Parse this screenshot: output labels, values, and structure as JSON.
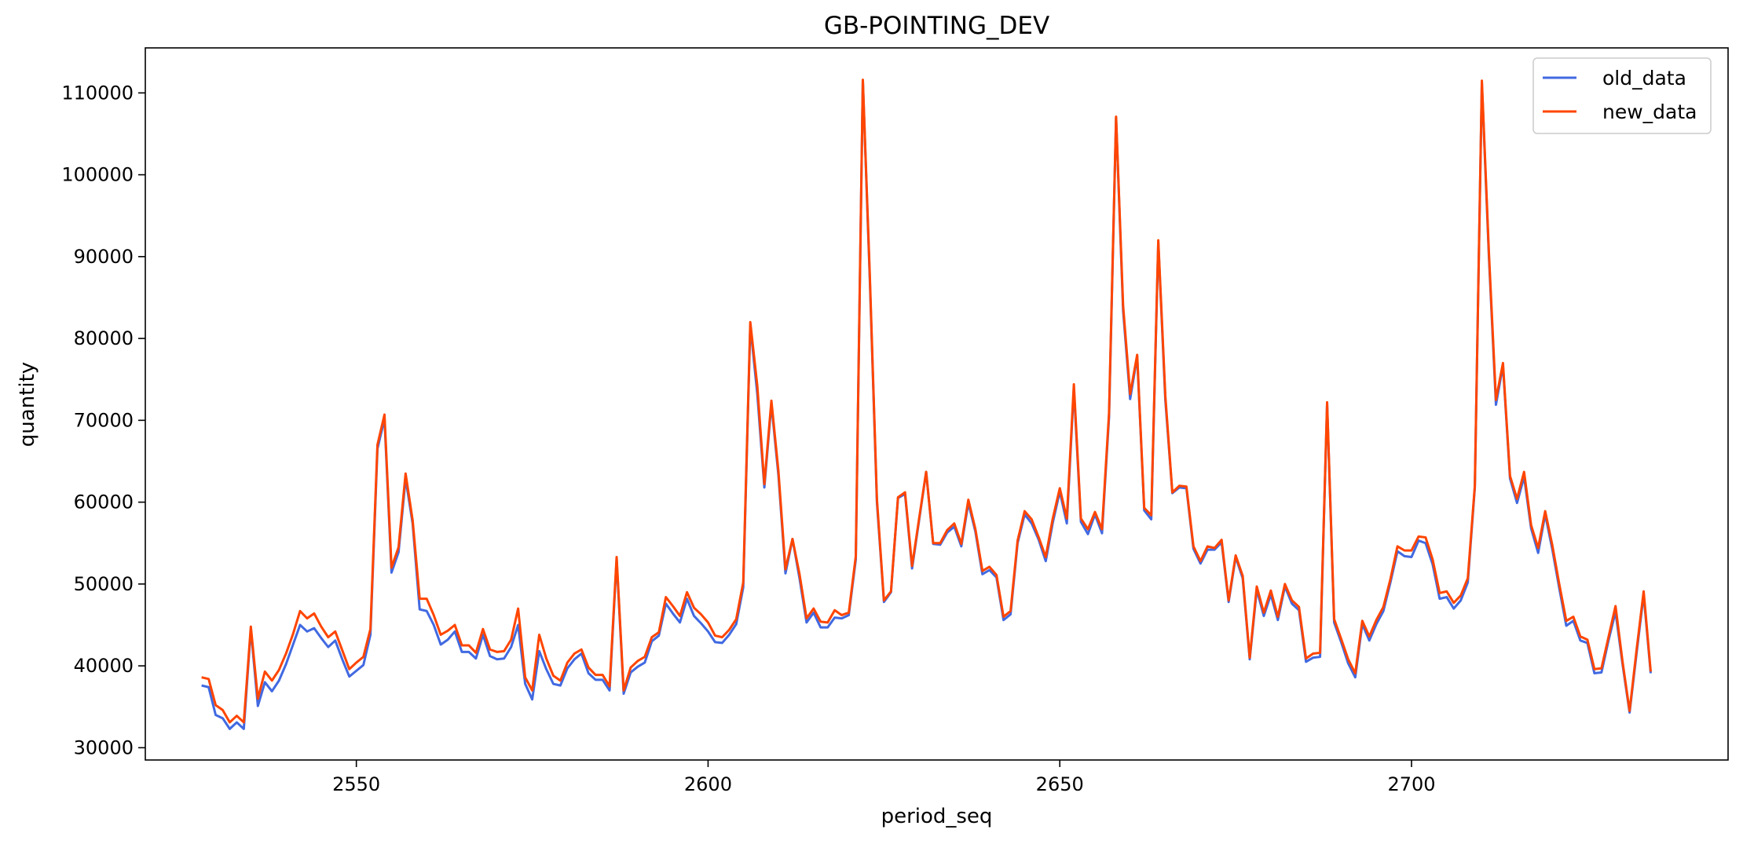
{
  "chart_data": {
    "type": "line",
    "title": "GB-POINTING_DEV",
    "xlabel": "period_seq",
    "ylabel": "quantity",
    "xlim": [
      2520,
      2745
    ],
    "ylim": [
      28500,
      115500
    ],
    "xticks": [
      2550,
      2600,
      2650,
      2700
    ],
    "yticks": [
      30000,
      40000,
      50000,
      60000,
      70000,
      80000,
      90000,
      100000,
      110000
    ],
    "grid": false,
    "legend_position": "top-right",
    "x_start": 2528,
    "series": [
      {
        "name": "old_data",
        "color": "#4169e1",
        "values": [
          37600,
          37400,
          34000,
          33600,
          32300,
          33100,
          32300,
          44500,
          35100,
          38000,
          36900,
          38200,
          40200,
          42600,
          45000,
          44200,
          44600,
          43400,
          42300,
          43100,
          40800,
          38700,
          39400,
          40100,
          43800,
          66500,
          70200,
          51400,
          53900,
          62900,
          57400,
          46900,
          46700,
          45000,
          42600,
          43200,
          44200,
          41700,
          41700,
          40900,
          43800,
          41200,
          40800,
          40900,
          42300,
          45000,
          37800,
          35900,
          41800,
          39600,
          37800,
          37600,
          39700,
          40800,
          41500,
          39100,
          38300,
          38300,
          37000,
          53000,
          36600,
          39200,
          39900,
          40400,
          43000,
          43700,
          47600,
          46400,
          45300,
          48200,
          46100,
          45200,
          44200,
          42900,
          42800,
          43800,
          45100,
          49600,
          81600,
          73200,
          61800,
          72000,
          63300,
          51300,
          55500,
          50700,
          45300,
          46500,
          44700,
          44700,
          45900,
          45800,
          46200,
          53000,
          111500,
          87000,
          60000,
          47800,
          49000,
          60500,
          61000,
          51900,
          57800,
          63700,
          54900,
          54800,
          56300,
          57000,
          54600,
          59900,
          56400,
          51200,
          51700,
          50800,
          45600,
          46300,
          55000,
          58500,
          57400,
          55400,
          52800,
          57500,
          61300,
          57400,
          73900,
          57600,
          56100,
          58500,
          56200,
          70400,
          107000,
          83400,
          72600,
          77800,
          59000,
          57900,
          91700,
          72500,
          61100,
          61800,
          61700,
          54300,
          52500,
          54200,
          54200,
          55100,
          47800,
          53300,
          50700,
          40800,
          49300,
          46100,
          48700,
          45600,
          49700,
          47600,
          46800,
          40500,
          41000,
          41100,
          72000,
          45300,
          42900,
          40300,
          38600,
          45100,
          43100,
          45100,
          46700,
          50200,
          54000,
          53400,
          53300,
          55300,
          55000,
          52400,
          48200,
          48400,
          47000,
          48000,
          50200,
          61800,
          111200,
          90000,
          71900,
          76700,
          62900,
          59900,
          63100,
          56800,
          53800,
          58500,
          54300,
          49500,
          44900,
          45500,
          43100,
          42800,
          39100,
          39200,
          43100,
          46600,
          40200,
          34300,
          41600,
          48700,
          39100
        ]
      },
      {
        "name": "new_data",
        "color": "#ff4500",
        "values": [
          38600,
          38400,
          35200,
          34600,
          33100,
          33900,
          33100,
          44800,
          36000,
          39300,
          38200,
          39500,
          41500,
          43900,
          46700,
          45800,
          46400,
          44800,
          43500,
          44200,
          41900,
          39600,
          40400,
          41100,
          44500,
          67000,
          70700,
          52000,
          54500,
          63500,
          57800,
          48200,
          48200,
          46200,
          43800,
          44300,
          45000,
          42500,
          42500,
          41600,
          44500,
          42000,
          41700,
          41800,
          43200,
          47000,
          38600,
          37000,
          43800,
          40900,
          38800,
          38200,
          40400,
          41500,
          42000,
          39800,
          38900,
          38900,
          37500,
          53300,
          37000,
          39800,
          40600,
          41100,
          43500,
          44100,
          48400,
          47300,
          46100,
          49000,
          47100,
          46300,
          45300,
          43700,
          43500,
          44400,
          45700,
          50200,
          82000,
          74200,
          62200,
          72400,
          63800,
          51800,
          55500,
          51200,
          45800,
          47000,
          45400,
          45300,
          46800,
          46200,
          46500,
          53400,
          111600,
          87500,
          60400,
          48000,
          49100,
          60600,
          61200,
          52200,
          58000,
          63700,
          55000,
          55000,
          56600,
          57400,
          54900,
          60300,
          56700,
          51600,
          52100,
          51100,
          46000,
          46700,
          55300,
          58900,
          57900,
          55700,
          53300,
          58000,
          61700,
          58000,
          74400,
          58000,
          56700,
          58800,
          56700,
          70900,
          107100,
          84000,
          73200,
          78000,
          59300,
          58400,
          92000,
          73000,
          61200,
          62000,
          61900,
          54600,
          52800,
          54600,
          54400,
          55400,
          48000,
          53500,
          51000,
          41000,
          49700,
          46500,
          49200,
          46000,
          50000,
          48000,
          47200,
          40900,
          41500,
          41600,
          72200,
          45700,
          43300,
          40800,
          39100,
          45500,
          43600,
          45600,
          47200,
          50600,
          54600,
          54100,
          54100,
          55800,
          55700,
          53000,
          48900,
          49100,
          47700,
          48600,
          50700,
          62000,
          111500,
          90500,
          72500,
          77000,
          63200,
          60400,
          63700,
          57200,
          54400,
          58900,
          54800,
          50000,
          45500,
          46000,
          43600,
          43200,
          39600,
          39700,
          43500,
          47300,
          40500,
          34500,
          42000,
          49100,
          39300
        ]
      }
    ]
  }
}
